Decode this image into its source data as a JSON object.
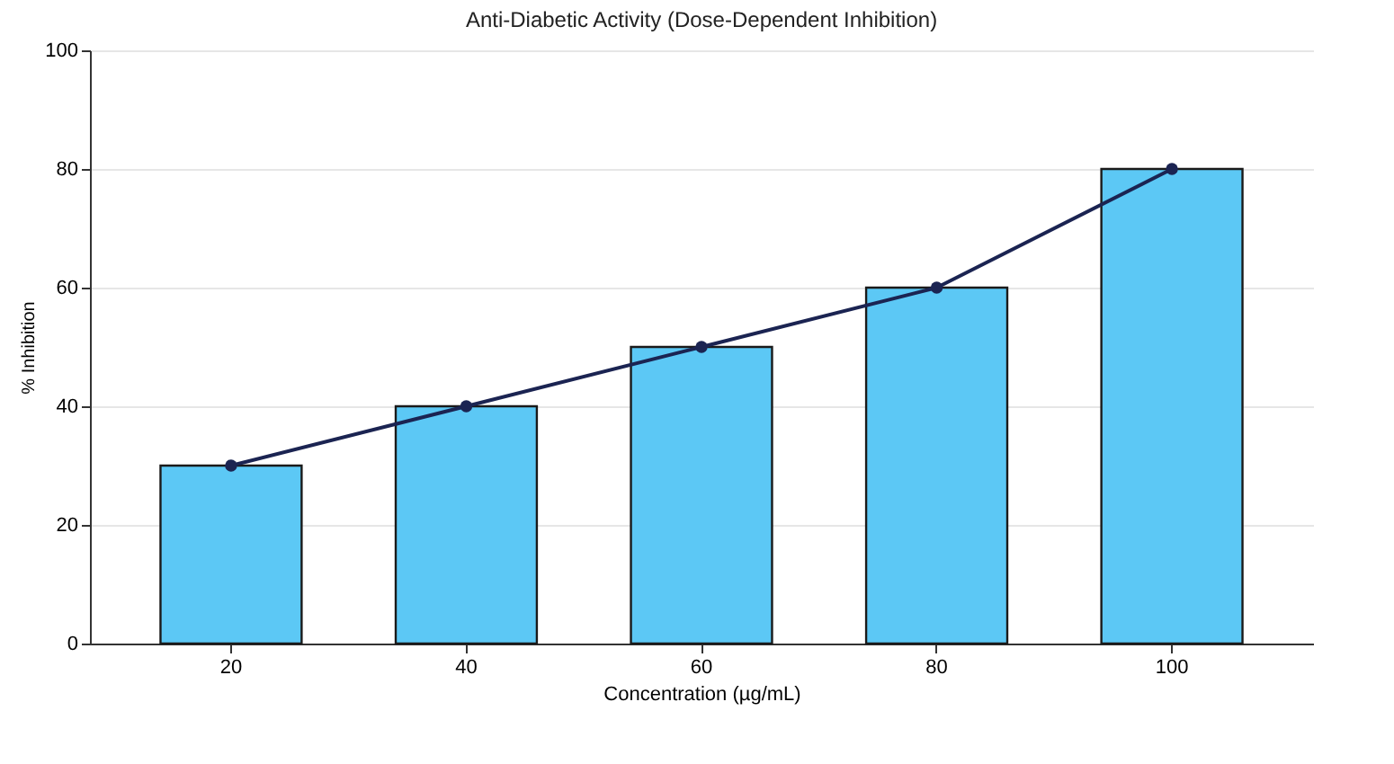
{
  "chart_data": {
    "type": "bar",
    "title": "Anti-Diabetic Activity (Dose-Dependent Inhibition)",
    "xlabel": "Concentration (µg/mL)",
    "ylabel": "% Inhibition",
    "categories": [
      "20",
      "40",
      "60",
      "80",
      "100"
    ],
    "series": [
      {
        "color": "#5cc8f5",
        "values": [
          30,
          40,
          50,
          60,
          80
        ]
      },
      {
        "type": "line",
        "color": "#1b2452",
        "values": [
          30,
          40,
          50,
          60,
          80
        ]
      }
    ],
    "ylim": [
      0,
      100
    ],
    "yticks": [
      0,
      20,
      40,
      60,
      80,
      100
    ],
    "grid": "y",
    "marker": "circle",
    "line_style": "solid"
  }
}
